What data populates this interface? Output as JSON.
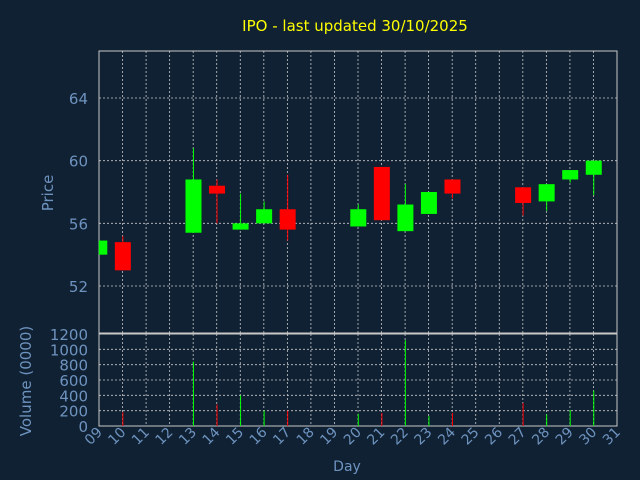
{
  "colors": {
    "background": "#0f2133",
    "title": "#ffff00",
    "axis_text": "#6f93bf",
    "grid": "#c8c8c8",
    "up": "#00ff00",
    "down": "#ff0000"
  },
  "chart_data": [
    {
      "type": "candlestick",
      "title": "IPO - last updated 30/10/2025",
      "ylabel": "Price",
      "ylim": [
        49,
        67
      ],
      "yticks": [
        52,
        56,
        60,
        64
      ],
      "grid": true,
      "candles": [
        {
          "day": 9,
          "open": 54.0,
          "high": 54.9,
          "low": 54.0,
          "close": 54.9
        },
        {
          "day": 10,
          "open": 54.8,
          "high": 55.2,
          "low": 53.0,
          "close": 53.0
        },
        {
          "day": 13,
          "open": 55.4,
          "high": 60.8,
          "low": 55.4,
          "close": 58.8
        },
        {
          "day": 14,
          "open": 58.4,
          "high": 58.8,
          "low": 56.0,
          "close": 57.9
        },
        {
          "day": 15,
          "open": 55.6,
          "high": 57.9,
          "low": 55.6,
          "close": 56.0
        },
        {
          "day": 16,
          "open": 56.0,
          "high": 57.4,
          "low": 56.0,
          "close": 56.9
        },
        {
          "day": 17,
          "open": 56.9,
          "high": 59.1,
          "low": 54.9,
          "close": 55.6
        },
        {
          "day": 20,
          "open": 55.8,
          "high": 57.2,
          "low": 55.8,
          "close": 56.9
        },
        {
          "day": 21,
          "open": 59.6,
          "high": 59.6,
          "low": 56.2,
          "close": 56.2
        },
        {
          "day": 22,
          "open": 55.5,
          "high": 58.5,
          "low": 55.5,
          "close": 57.2
        },
        {
          "day": 23,
          "open": 56.6,
          "high": 58.0,
          "low": 56.6,
          "close": 58.0
        },
        {
          "day": 24,
          "open": 58.8,
          "high": 58.8,
          "low": 57.6,
          "close": 57.9
        },
        {
          "day": 27,
          "open": 58.3,
          "high": 58.3,
          "low": 56.5,
          "close": 57.3
        },
        {
          "day": 28,
          "open": 57.4,
          "high": 58.5,
          "low": 56.8,
          "close": 58.5
        },
        {
          "day": 29,
          "open": 58.8,
          "high": 59.4,
          "low": 58.6,
          "close": 59.4
        },
        {
          "day": 30,
          "open": 59.1,
          "high": 60.0,
          "low": 57.8,
          "close": 60.0
        }
      ]
    },
    {
      "type": "bar",
      "ylabel": "Volume (0000)",
      "xlabel": "Day",
      "ylim": [
        0,
        1200
      ],
      "yticks": [
        0,
        200,
        400,
        600,
        800,
        1000,
        1200
      ],
      "xticks": [
        "09",
        "10",
        "11",
        "12",
        "13",
        "14",
        "15",
        "16",
        "17",
        "18",
        "19",
        "20",
        "21",
        "22",
        "23",
        "24",
        "25",
        "26",
        "27",
        "28",
        "29",
        "30",
        "31"
      ],
      "grid": true,
      "bars": [
        {
          "day": 9,
          "value": 0,
          "direction": "up"
        },
        {
          "day": 10,
          "value": 180,
          "direction": "down"
        },
        {
          "day": 13,
          "value": 840,
          "direction": "up"
        },
        {
          "day": 14,
          "value": 280,
          "direction": "down"
        },
        {
          "day": 15,
          "value": 400,
          "direction": "up"
        },
        {
          "day": 16,
          "value": 200,
          "direction": "up"
        },
        {
          "day": 17,
          "value": 200,
          "direction": "down"
        },
        {
          "day": 20,
          "value": 160,
          "direction": "up"
        },
        {
          "day": 21,
          "value": 170,
          "direction": "down"
        },
        {
          "day": 22,
          "value": 1120,
          "direction": "up"
        },
        {
          "day": 23,
          "value": 130,
          "direction": "up"
        },
        {
          "day": 24,
          "value": 170,
          "direction": "down"
        },
        {
          "day": 27,
          "value": 300,
          "direction": "down"
        },
        {
          "day": 28,
          "value": 150,
          "direction": "up"
        },
        {
          "day": 29,
          "value": 210,
          "direction": "up"
        },
        {
          "day": 30,
          "value": 460,
          "direction": "up"
        }
      ]
    }
  ]
}
